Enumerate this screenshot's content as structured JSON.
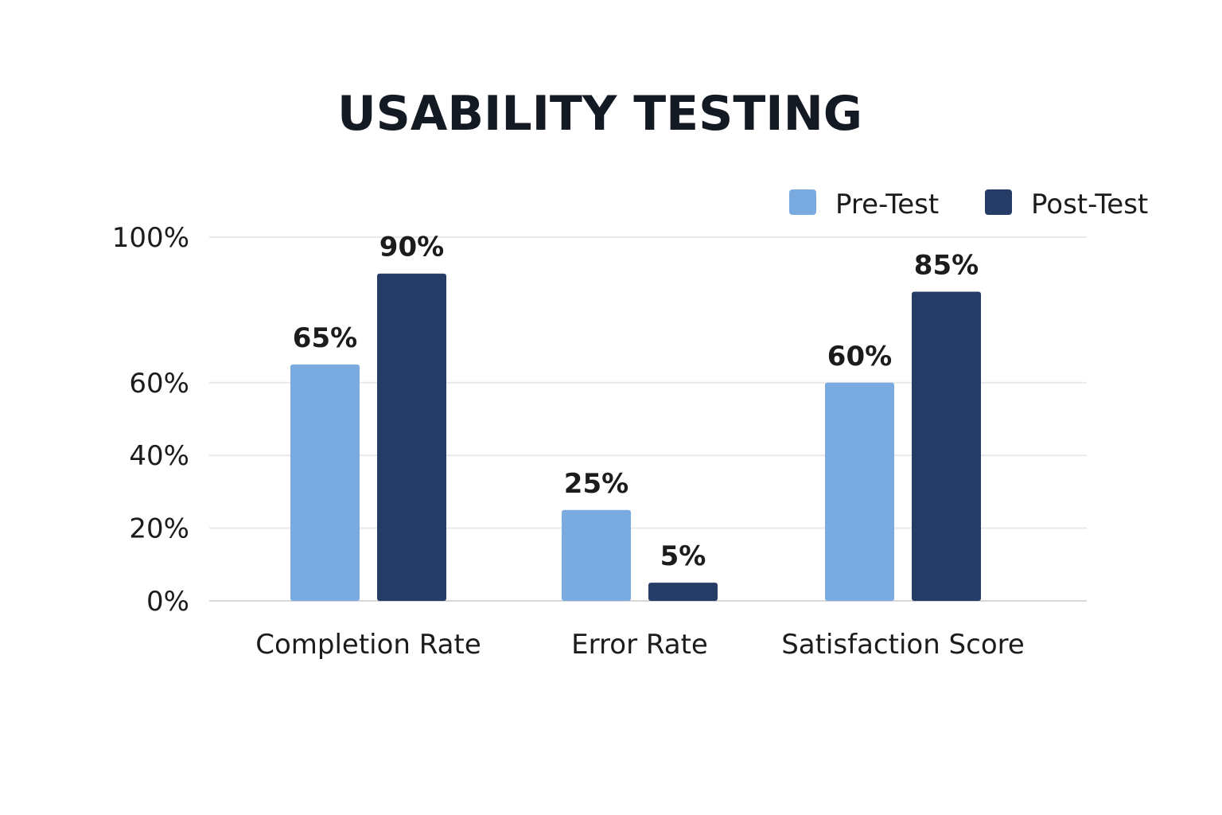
{
  "chart_data": {
    "type": "bar",
    "title": "USABILITY TESTING",
    "categories": [
      "Completion Rate",
      "Error Rate",
      "Satisfaction Score"
    ],
    "series": [
      {
        "name": "Pre-Test",
        "values": [
          65,
          25,
          60
        ],
        "labels": [
          "65%",
          "25%",
          "60%"
        ],
        "color": "#79aae0"
      },
      {
        "name": "Post-Test",
        "values": [
          90,
          5,
          85
        ],
        "labels": [
          "90%",
          "5%",
          "85%"
        ],
        "color": "#253d66"
      }
    ],
    "y_ticks": [
      {
        "value": 0,
        "label": "0%"
      },
      {
        "value": 20,
        "label": "20%"
      },
      {
        "value": 40,
        "label": "40%"
      },
      {
        "value": 60,
        "label": "60%"
      },
      {
        "value": 100,
        "label": "100%"
      }
    ],
    "ylim": [
      0,
      100
    ],
    "grid": true,
    "legend_position": "top-right",
    "xlabel": "",
    "ylabel": ""
  }
}
